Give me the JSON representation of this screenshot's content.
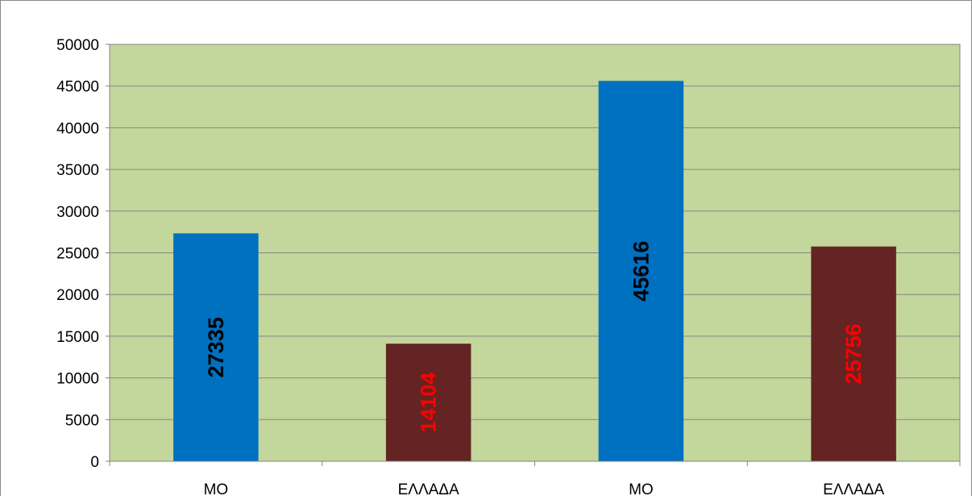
{
  "chart_data": {
    "type": "bar",
    "categories": [
      "ΜΟ",
      "ΕΛΛΑΔΑ",
      "ΜΟ",
      "ΕΛΛΑΔΑ"
    ],
    "values": [
      27335,
      14104,
      45616,
      25756
    ],
    "data_labels": [
      "27335",
      "14104",
      "45616",
      "25756"
    ],
    "bar_colors": [
      "#0070C0",
      "#632423",
      "#0070C0",
      "#632423"
    ],
    "label_colors": [
      "#000000",
      "#FF0000",
      "#000000",
      "#FF0000"
    ],
    "ylim": [
      0,
      50000
    ],
    "yticks": [
      0,
      5000,
      10000,
      15000,
      20000,
      25000,
      30000,
      35000,
      40000,
      45000,
      50000
    ],
    "ytick_labels": [
      "0",
      "5000",
      "10000",
      "15000",
      "20000",
      "25000",
      "30000",
      "35000",
      "40000",
      "45000",
      "50000"
    ],
    "grid": true,
    "legend": "none",
    "title": "",
    "xlabel": "",
    "ylabel": "",
    "plot_background": "#C3D69B",
    "gridline_color": "#868686"
  }
}
